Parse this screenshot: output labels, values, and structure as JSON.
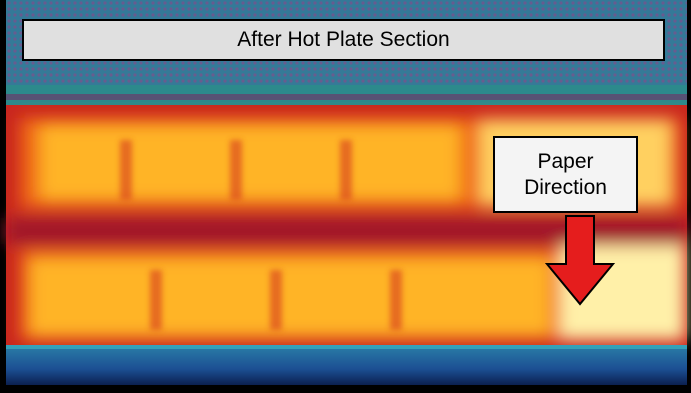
{
  "header": {
    "title": "After Hot Plate Section"
  },
  "annotation": {
    "label": "Paper Direction"
  }
}
